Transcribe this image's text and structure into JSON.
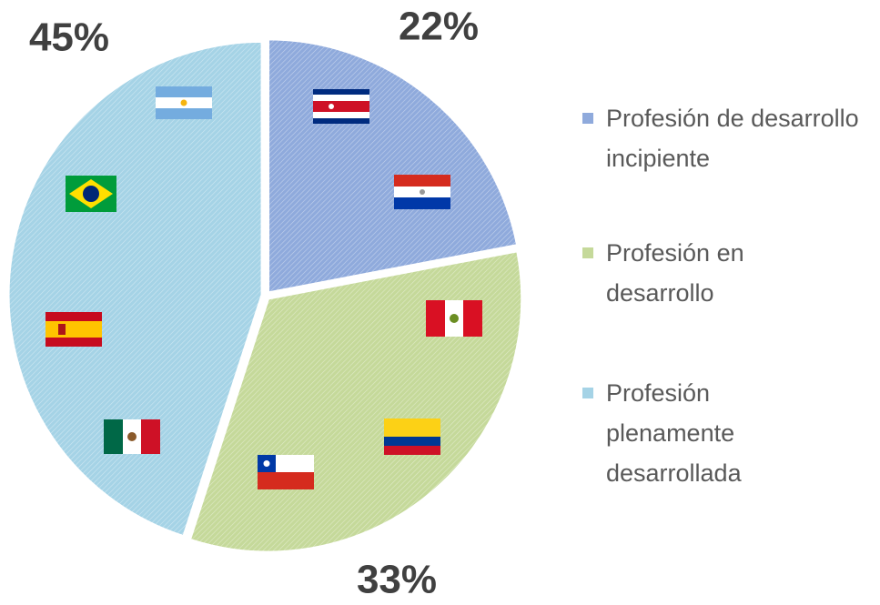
{
  "chart_data": {
    "type": "pie",
    "series": [
      {
        "name": "Profesión de desarrollo incipiente",
        "color": "#8faadc",
        "values": [
          22
        ],
        "value_labels": [
          "22%"
        ]
      },
      {
        "name": "Profesión en desarrollo",
        "color": "#c5d99a",
        "values": [
          33
        ],
        "value_labels": [
          "33%"
        ]
      },
      {
        "name": "Profesión plenamente desarrollada",
        "color": "#a5d3e6",
        "values": [
          45
        ],
        "value_labels": [
          "45%"
        ]
      }
    ],
    "legend": "right"
  }
}
